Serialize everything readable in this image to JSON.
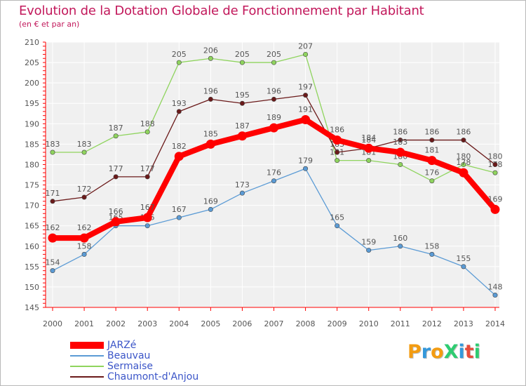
{
  "title": "Evolution de la Dotation Globale de Fonctionnement par Habitant",
  "subtitle": "(en € et par an)",
  "logo": {
    "text": "ProXiti",
    "colors": [
      "#f39c12",
      "#3498db",
      "#f39c12",
      "#2ecc71",
      "#3498db",
      "#e74c3c",
      "#2ecc71"
    ]
  },
  "chart_data": {
    "type": "line",
    "title": "Evolution de la Dotation Globale de Fonctionnement par Habitant",
    "ylabel": "(en € et par an)",
    "xlabel": "",
    "ylim": [
      145,
      210
    ],
    "yticks": [
      145,
      150,
      155,
      160,
      165,
      170,
      175,
      180,
      185,
      190,
      195,
      200,
      205,
      210
    ],
    "grid": true,
    "legend_position": "bottom-left",
    "categories": [
      "2000",
      "2001",
      "2002",
      "2003",
      "2004",
      "2005",
      "2006",
      "2007",
      "2008",
      "2009",
      "2010",
      "2011",
      "2012",
      "2013",
      "2014"
    ],
    "series": [
      {
        "name": "Sermaise",
        "color": "#8fd45e",
        "values": [
          183,
          183,
          187,
          188,
          205,
          206,
          205,
          205,
          207,
          181,
          181,
          180,
          176,
          180,
          178
        ]
      },
      {
        "name": "Chaumont-d'Anjou",
        "color": "#6b1a1a",
        "values": [
          171,
          172,
          177,
          177,
          193,
          196,
          195,
          196,
          197,
          183,
          184,
          186,
          186,
          186,
          180
        ]
      },
      {
        "name": "Beauvau",
        "color": "#5b9bd5",
        "values": [
          154,
          158,
          165,
          165,
          167,
          169,
          173,
          176,
          179,
          165,
          159,
          160,
          158,
          155,
          148
        ]
      },
      {
        "name": "JARZé",
        "color": "#ff0000",
        "values": [
          162,
          162,
          166,
          167,
          182,
          185,
          187,
          189,
          191,
          186,
          184,
          183,
          181,
          178,
          169
        ]
      }
    ],
    "legend": [
      "JARZé",
      "Beauvau",
      "Sermaise",
      "Chaumont-d'Anjou"
    ]
  }
}
